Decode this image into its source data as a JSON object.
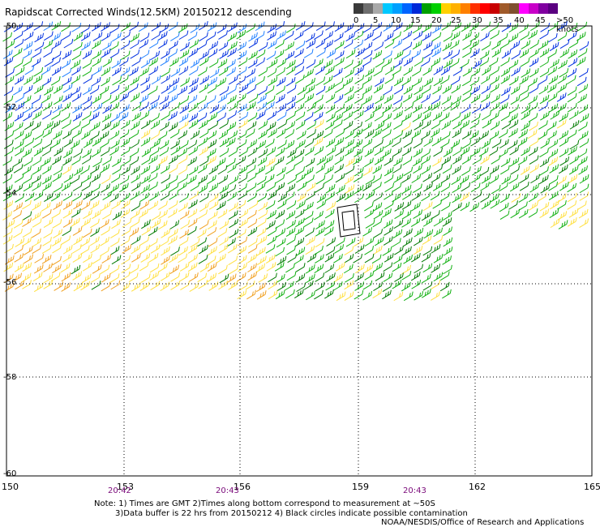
{
  "title": "Rapidscat Corrected Winds(12.5KM) 20150212 descending",
  "scale": {
    "colors": [
      "#3a3a3a",
      "#6e6e6e",
      "#a8a8a8",
      "#00c8ff",
      "#00a0ff",
      "#0064ff",
      "#0028d8",
      "#00a000",
      "#00d000",
      "#ffd000",
      "#ffb000",
      "#ff8000",
      "#ff3000",
      "#ff0000",
      "#c80000",
      "#a05a2a",
      "#805030",
      "#ff00ff",
      "#c800c8",
      "#8000a0",
      "#5a0080"
    ],
    "labels": [
      "0",
      "5",
      "10",
      "15",
      "20",
      "25",
      "30",
      "35",
      "40",
      "45",
      ">50 knots"
    ],
    "barb_colors": {
      "green": "#10b010",
      "dark_green": "#007a00",
      "blue": "#0030e0",
      "light_blue": "#2080ff",
      "yellow": "#ffe040",
      "orange": "#f0a020",
      "black": "#000000"
    }
  },
  "axes": {
    "x_ticks": [
      "150",
      "153",
      "156",
      "159",
      "162",
      "165"
    ],
    "y_ticks": [
      "-50",
      "-52",
      "-54",
      "-56",
      "-58",
      "-60"
    ],
    "times": [
      "20:42",
      "20:43",
      "20:43"
    ]
  },
  "notes": {
    "line1": "Note: 1) Times are GMT 2)Times along bottom correspond to measurement at ~50S",
    "line2": "3)Data buffer is 22 hrs from 20150212 4) Black circles indicate possible contamination",
    "credit": "NOAA/NESDIS/Office of Research and Applications"
  }
}
